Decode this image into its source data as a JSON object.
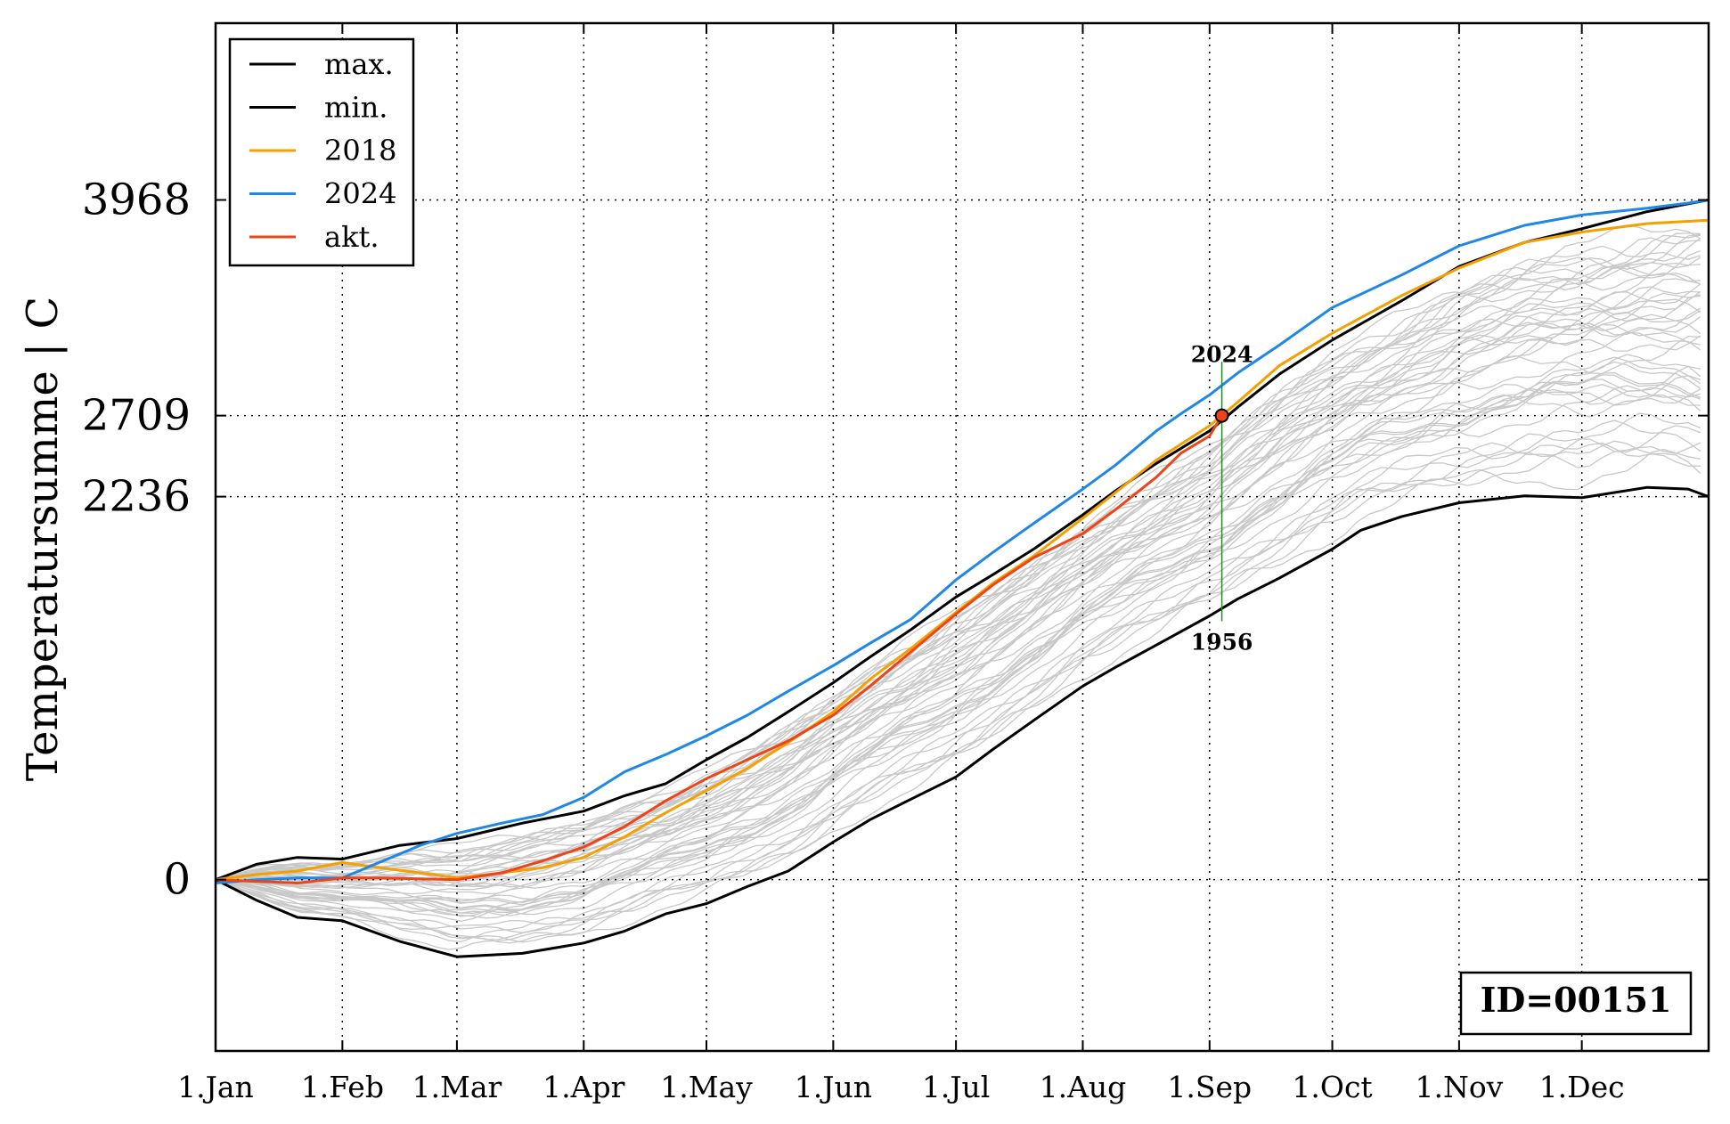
{
  "chart_data": {
    "type": "line",
    "ylabel": "Temperatursumme | C",
    "xlabel": "",
    "id_label": "ID=00151",
    "xlim": [
      0,
      365
    ],
    "ylim": [
      -1000,
      5000
    ],
    "month_ticks": [
      {
        "label": "1.Jan",
        "day": 0
      },
      {
        "label": "1.Feb",
        "day": 31
      },
      {
        "label": "1.Mar",
        "day": 59
      },
      {
        "label": "1.Apr",
        "day": 90
      },
      {
        "label": "1.May",
        "day": 120
      },
      {
        "label": "1.Jun",
        "day": 151
      },
      {
        "label": "1.Jul",
        "day": 181
      },
      {
        "label": "1.Aug",
        "day": 212
      },
      {
        "label": "1.Sep",
        "day": 243
      },
      {
        "label": "1.Oct",
        "day": 273
      },
      {
        "label": "1.Nov",
        "day": 304
      },
      {
        "label": "1.Dec",
        "day": 334
      }
    ],
    "y_ticks": [
      {
        "label": "0",
        "value": 0
      },
      {
        "label": "2236",
        "value": 2236
      },
      {
        "label": "2709",
        "value": 2709
      },
      {
        "label": "3968",
        "value": 3968
      }
    ],
    "grid": true,
    "legend_position": "top-left",
    "series": [
      {
        "name": "max.",
        "color": "#000000",
        "x": [
          0,
          10,
          20,
          31,
          45,
          59,
          75,
          90,
          100,
          110,
          120,
          130,
          140,
          151,
          160,
          170,
          181,
          190,
          200,
          212,
          220,
          230,
          243,
          250,
          260,
          273,
          290,
          304,
          320,
          334,
          350,
          365
        ],
        "y": [
          0,
          90,
          130,
          120,
          200,
          240,
          330,
          400,
          490,
          560,
          700,
          830,
          980,
          1150,
          1300,
          1460,
          1650,
          1780,
          1930,
          2130,
          2270,
          2430,
          2620,
          2760,
          2950,
          3150,
          3380,
          3580,
          3720,
          3800,
          3900,
          3968
        ]
      },
      {
        "name": "min.",
        "color": "#000000",
        "x": [
          0,
          10,
          20,
          31,
          45,
          59,
          75,
          90,
          100,
          110,
          120,
          130,
          140,
          151,
          160,
          170,
          181,
          190,
          200,
          212,
          220,
          230,
          243,
          250,
          260,
          273,
          280,
          290,
          304,
          320,
          334,
          350,
          360,
          365
        ],
        "y": [
          0,
          -120,
          -220,
          -240,
          -360,
          -450,
          -430,
          -370,
          -300,
          -200,
          -140,
          -40,
          50,
          220,
          350,
          470,
          600,
          760,
          930,
          1130,
          1240,
          1370,
          1540,
          1640,
          1760,
          1930,
          2040,
          2120,
          2200,
          2240,
          2230,
          2290,
          2280,
          2236
        ]
      },
      {
        "name": "2018",
        "color": "#f5a000",
        "x": [
          0,
          10,
          20,
          31,
          40,
          50,
          59,
          70,
          80,
          90,
          100,
          110,
          120,
          130,
          140,
          151,
          160,
          170,
          181,
          190,
          200,
          212,
          220,
          230,
          243,
          250,
          260,
          273,
          290,
          304,
          320,
          334,
          350,
          365
        ],
        "y": [
          0,
          30,
          50,
          100,
          70,
          40,
          10,
          40,
          70,
          130,
          250,
          390,
          520,
          650,
          800,
          980,
          1170,
          1350,
          1560,
          1730,
          1890,
          2110,
          2260,
          2450,
          2650,
          2790,
          3000,
          3190,
          3410,
          3570,
          3720,
          3780,
          3830,
          3850
        ]
      },
      {
        "name": "2024",
        "color": "#1f87e5",
        "x": [
          0,
          10,
          20,
          31,
          40,
          50,
          59,
          70,
          80,
          90,
          100,
          110,
          120,
          130,
          140,
          151,
          160,
          170,
          181,
          190,
          200,
          212,
          220,
          230,
          236,
          243,
          250,
          260,
          273,
          290,
          304,
          320,
          334,
          350,
          360,
          365
        ],
        "y": [
          -20,
          0,
          10,
          10,
          100,
          200,
          270,
          330,
          380,
          480,
          630,
          730,
          840,
          960,
          1100,
          1250,
          1380,
          1520,
          1750,
          1910,
          2080,
          2280,
          2420,
          2620,
          2720,
          2830,
          2960,
          3120,
          3340,
          3530,
          3700,
          3820,
          3880,
          3920,
          3950,
          3968
        ]
      },
      {
        "name": "akt.",
        "color": "#ee4417",
        "x": [
          0,
          10,
          20,
          31,
          40,
          50,
          59,
          70,
          80,
          90,
          100,
          110,
          120,
          130,
          140,
          151,
          160,
          170,
          181,
          190,
          200,
          212,
          220,
          230,
          236,
          243,
          246
        ],
        "y": [
          0,
          -10,
          -20,
          10,
          10,
          5,
          0,
          40,
          110,
          190,
          310,
          460,
          590,
          700,
          810,
          960,
          1130,
          1330,
          1550,
          1720,
          1880,
          2020,
          2160,
          2350,
          2490,
          2590,
          2709
        ]
      }
    ],
    "background_years_color": "#c8c8c8",
    "marker": {
      "x": 246,
      "y": 2709,
      "color": "#ee4417"
    },
    "annotations": [
      {
        "text": "2024",
        "x": 246,
        "y": 2950
      },
      {
        "text": "1956",
        "x": 246,
        "y": 1540
      }
    ]
  }
}
